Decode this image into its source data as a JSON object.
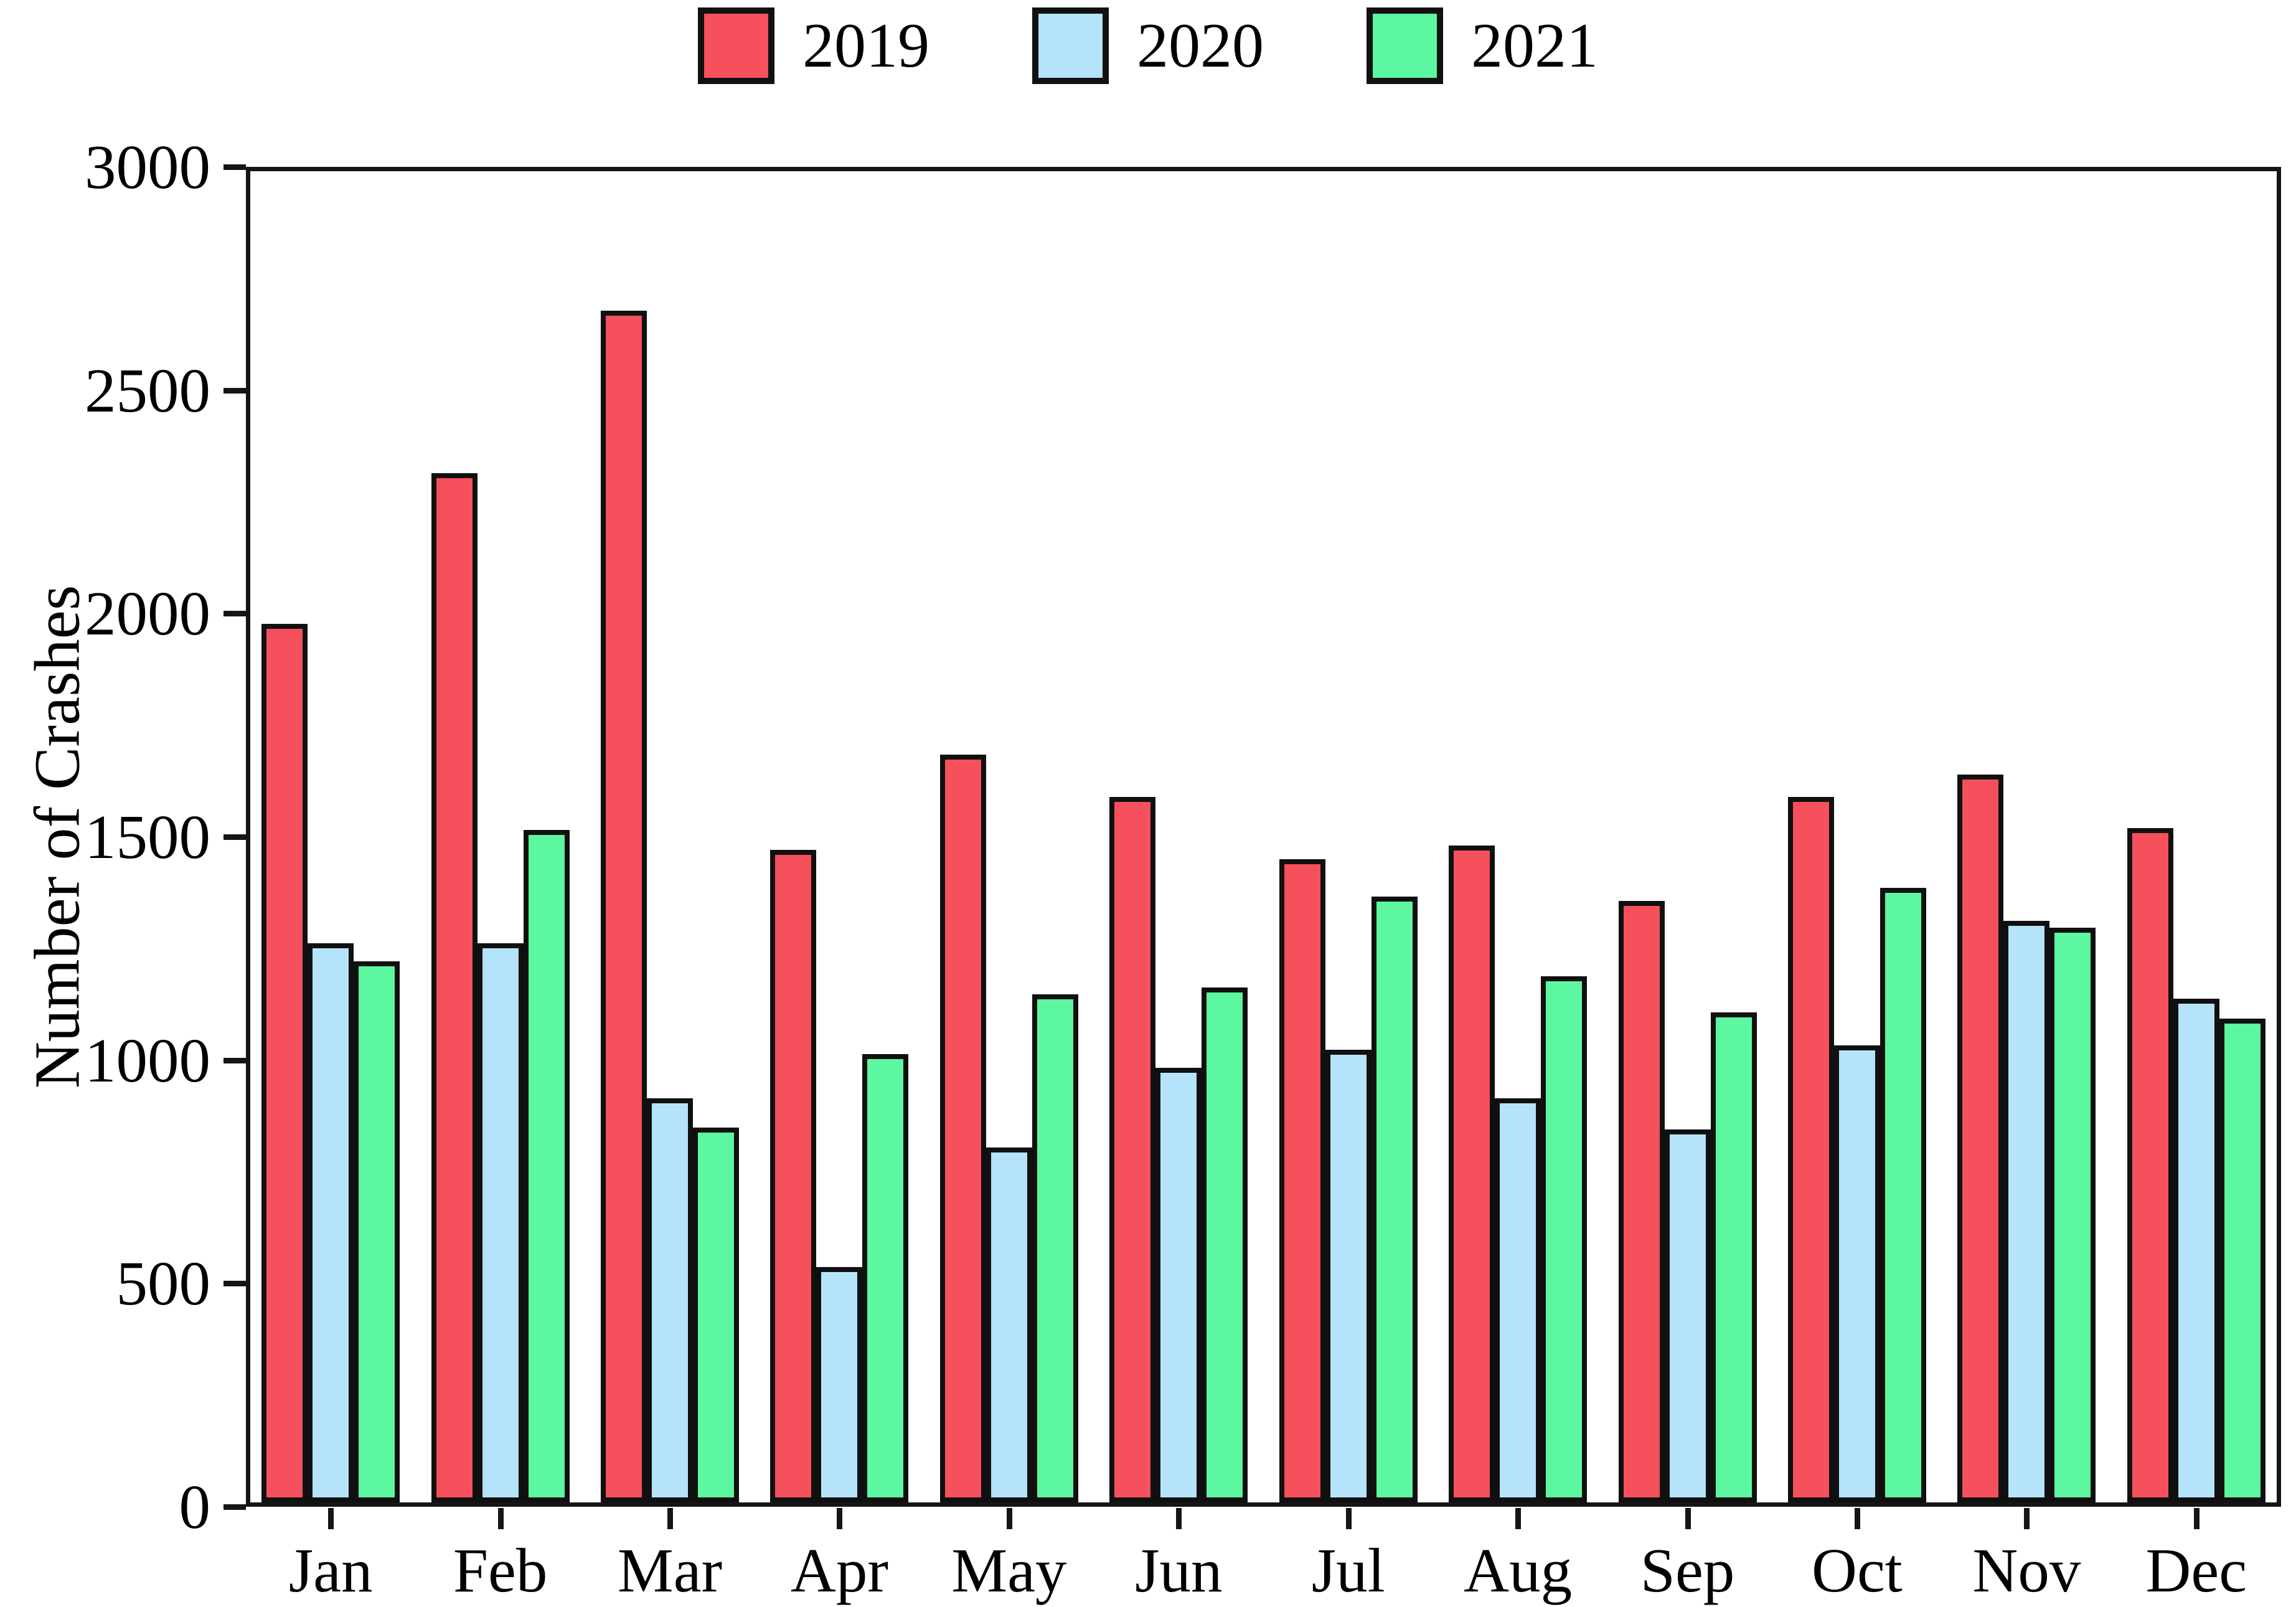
{
  "chart_data": {
    "type": "bar",
    "title": "",
    "xlabel": "",
    "ylabel": "Number of Crashes",
    "categories": [
      "Jan",
      "Feb",
      "Mar",
      "Apr",
      "May",
      "Jun",
      "Jul",
      "Aug",
      "Sep",
      "Oct",
      "Nov",
      "Dec"
    ],
    "series": [
      {
        "name": "2019",
        "color": "#F5505C",
        "values": [
          1980,
          2320,
          2685,
          1470,
          1685,
          1590,
          1450,
          1480,
          1355,
          1590,
          1640,
          1520
        ]
      },
      {
        "name": "2020",
        "color": "#B5E3FA",
        "values": [
          1260,
          1260,
          910,
          530,
          800,
          980,
          1020,
          910,
          840,
          1030,
          1310,
          1135
        ]
      },
      {
        "name": "2021",
        "color": "#5CF7A0",
        "values": [
          1220,
          1515,
          845,
          1010,
          1145,
          1160,
          1365,
          1185,
          1105,
          1385,
          1295,
          1090
        ]
      }
    ],
    "ylim": [
      0,
      3000
    ],
    "yticks": [
      0,
      500,
      1000,
      1500,
      2000,
      2500,
      3000
    ],
    "bar_edge_color": "#101010",
    "grid": "off",
    "legend_position": "top-center",
    "background_color": "#ffffff"
  }
}
